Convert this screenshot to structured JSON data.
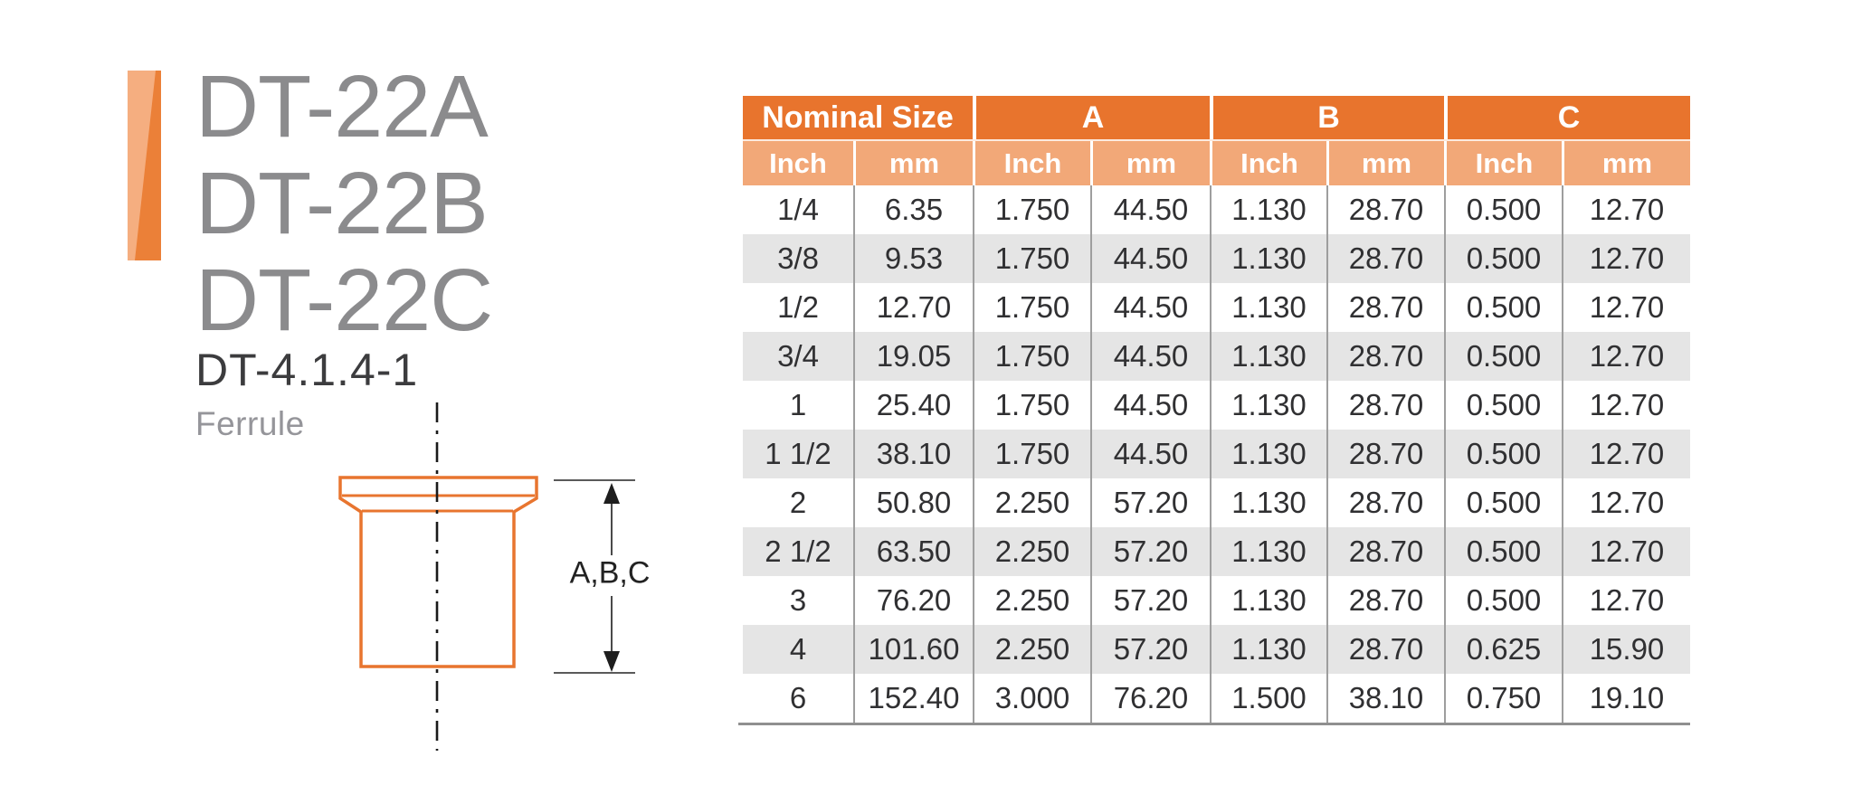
{
  "header": {
    "models": [
      "DT-22A",
      "DT-22B",
      "DT-22C"
    ],
    "part_number": "DT-4.1.4-1",
    "part_name": "Ferrule"
  },
  "diagram": {
    "dimension_label": "A,B,C",
    "shape": "ferrule-outline-with-centerline"
  },
  "table": {
    "group_headers": [
      "Nominal Size",
      "A",
      "B",
      "C"
    ],
    "unit_headers": [
      "Inch",
      "mm",
      "Inch",
      "mm",
      "Inch",
      "mm",
      "Inch",
      "mm"
    ],
    "rows": [
      [
        "1/4",
        "6.35",
        "1.750",
        "44.50",
        "1.130",
        "28.70",
        "0.500",
        "12.70"
      ],
      [
        "3/8",
        "9.53",
        "1.750",
        "44.50",
        "1.130",
        "28.70",
        "0.500",
        "12.70"
      ],
      [
        "1/2",
        "12.70",
        "1.750",
        "44.50",
        "1.130",
        "28.70",
        "0.500",
        "12.70"
      ],
      [
        "3/4",
        "19.05",
        "1.750",
        "44.50",
        "1.130",
        "28.70",
        "0.500",
        "12.70"
      ],
      [
        "1",
        "25.40",
        "1.750",
        "44.50",
        "1.130",
        "28.70",
        "0.500",
        "12.70"
      ],
      [
        "1 1/2",
        "38.10",
        "1.750",
        "44.50",
        "1.130",
        "28.70",
        "0.500",
        "12.70"
      ],
      [
        "2",
        "50.80",
        "2.250",
        "57.20",
        "1.130",
        "28.70",
        "0.500",
        "12.70"
      ],
      [
        "2 1/2",
        "63.50",
        "2.250",
        "57.20",
        "1.130",
        "28.70",
        "0.500",
        "12.70"
      ],
      [
        "3",
        "76.20",
        "2.250",
        "57.20",
        "1.130",
        "28.70",
        "0.500",
        "12.70"
      ],
      [
        "4",
        "101.60",
        "2.250",
        "57.20",
        "1.130",
        "28.70",
        "0.625",
        "15.90"
      ],
      [
        "6",
        "152.40",
        "3.000",
        "76.20",
        "1.500",
        "38.10",
        "0.750",
        "19.10"
      ]
    ]
  },
  "colors": {
    "header_orange": "#e8742d",
    "subheader_orange": "#f2a878",
    "row_alt_gray": "#e5e5e5",
    "drawing_orange": "#e8752f",
    "bar_light_orange": "#f5ae80",
    "bar_dark_orange": "#eb8038",
    "title_gray": "#8b8b8d"
  }
}
